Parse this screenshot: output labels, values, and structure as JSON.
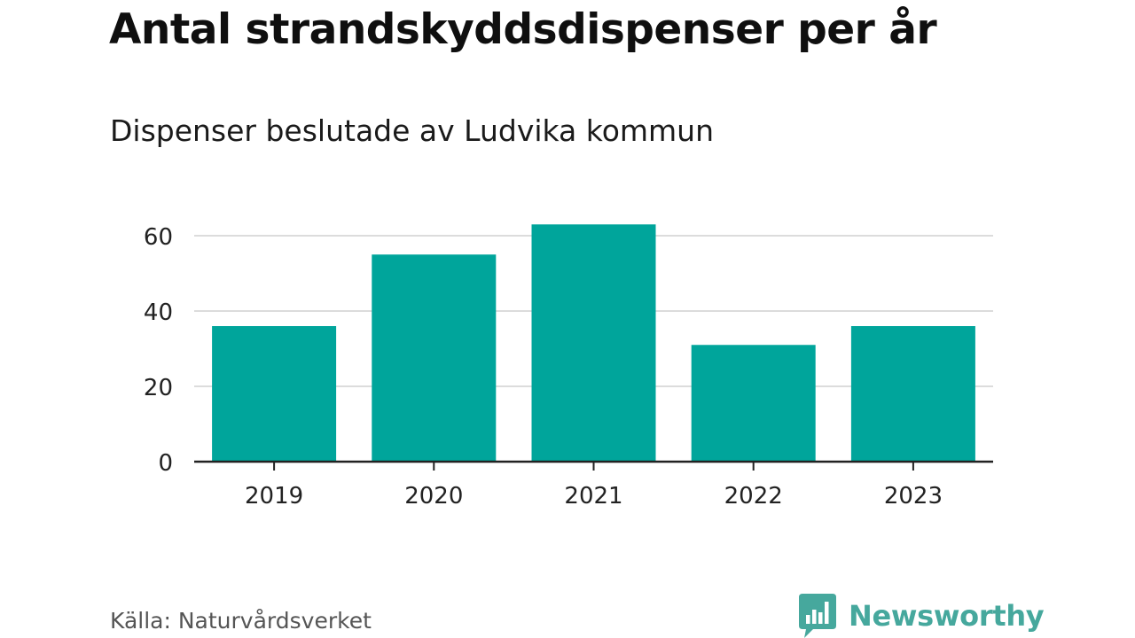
{
  "title": "Antal strandskyddsdispenser per år",
  "subtitle": "Dispenser beslutade av Ludvika kommun",
  "source": "Källa: Naturvårdsverket",
  "brand": {
    "name": "Newsworthy",
    "icon": "newsworthy-logo-icon"
  },
  "colors": {
    "bar": "#00a59b",
    "grid": "#dcdcdc",
    "axis": "#222222",
    "brand": "#46a89d"
  },
  "chart_data": {
    "type": "bar",
    "categories": [
      "2019",
      "2020",
      "2021",
      "2022",
      "2023"
    ],
    "values": [
      36,
      55,
      63,
      31,
      36
    ],
    "yticks": [
      0,
      20,
      40,
      60
    ],
    "ylim": [
      0,
      65
    ],
    "xlabel": "",
    "ylabel": "",
    "grid": true
  }
}
